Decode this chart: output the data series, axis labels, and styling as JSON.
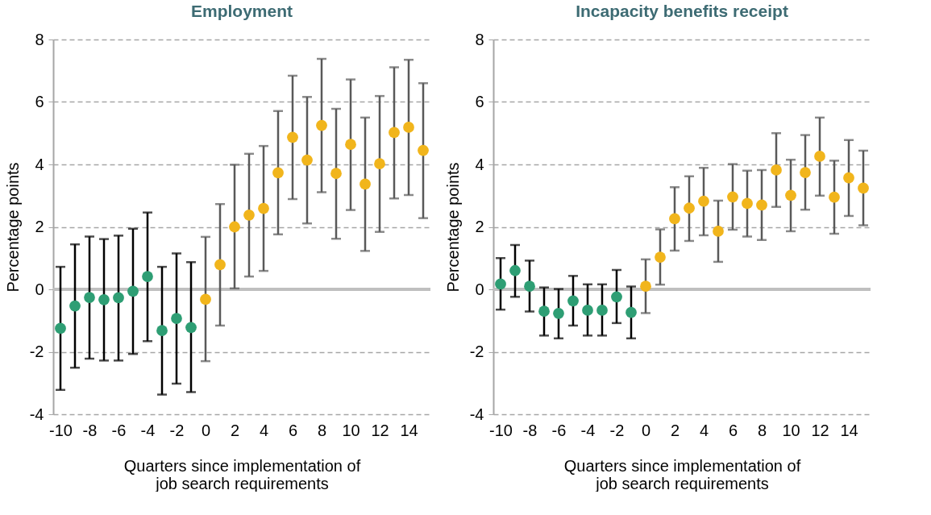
{
  "chart_data": [
    {
      "type": "scatter",
      "title": "Employment",
      "xlabel": "Quarters since implementation of\njob search requirements",
      "ylabel": "Percentage points",
      "xlim": [
        -10.5,
        15.5
      ],
      "xticks": [
        -10,
        -8,
        -6,
        -4,
        -2,
        0,
        2,
        4,
        6,
        8,
        10,
        12,
        14
      ],
      "ylim": [
        -4,
        8
      ],
      "yticks": [
        -4,
        -2,
        0,
        2,
        4,
        6,
        8
      ],
      "grid": "y",
      "marker": "circle",
      "ref_lines": [
        {
          "axis": "y",
          "value": 0,
          "color": "#bfbfbf"
        }
      ],
      "series": [
        {
          "color": "#2e9e74",
          "x": [
            -10,
            -9,
            -8,
            -7,
            -6,
            -5,
            -4,
            -3,
            -2,
            -1
          ],
          "values": [
            -1.25,
            -0.53,
            -0.26,
            -0.33,
            -0.27,
            -0.06,
            0.41,
            -1.32,
            -0.93,
            -1.22
          ],
          "errors": [
            [
              -3.22,
              0.72
            ],
            [
              -2.51,
              1.44
            ],
            [
              -2.22,
              1.69
            ],
            [
              -2.28,
              1.61
            ],
            [
              -2.28,
              1.72
            ],
            [
              -2.07,
              1.94
            ],
            [
              -1.66,
              2.46
            ],
            [
              -3.37,
              0.72
            ],
            [
              -3.02,
              1.15
            ],
            [
              -3.29,
              0.87
            ]
          ]
        },
        {
          "color": "#f1b51c",
          "x": [
            0,
            1,
            2,
            3,
            4,
            5,
            6,
            7,
            8,
            9,
            10,
            11,
            12,
            13,
            14,
            15
          ],
          "values": [
            -0.32,
            0.79,
            2.0,
            2.38,
            2.59,
            3.73,
            4.87,
            4.14,
            5.25,
            3.71,
            4.64,
            3.37,
            4.02,
            5.02,
            5.19,
            4.45
          ],
          "errors": [
            [
              -2.3,
              1.68
            ],
            [
              -1.16,
              2.73
            ],
            [
              0.03,
              3.99
            ],
            [
              0.41,
              4.34
            ],
            [
              0.59,
              4.59
            ],
            [
              1.76,
              5.71
            ],
            [
              2.89,
              6.84
            ],
            [
              2.11,
              6.16
            ],
            [
              3.11,
              7.38
            ],
            [
              1.62,
              5.78
            ],
            [
              2.54,
              6.72
            ],
            [
              1.23,
              5.5
            ],
            [
              1.84,
              6.19
            ],
            [
              2.91,
              7.11
            ],
            [
              3.02,
              7.35
            ],
            [
              2.28,
              6.6
            ]
          ]
        }
      ]
    },
    {
      "type": "scatter",
      "title": "Incapacity benefits receipt",
      "xlabel": "Quarters since implementation of\njob search requirements",
      "ylabel": "Percentage points",
      "xlim": [
        -10.5,
        15.5
      ],
      "xticks": [
        -10,
        -8,
        -6,
        -4,
        -2,
        0,
        2,
        4,
        6,
        8,
        10,
        12,
        14
      ],
      "ylim": [
        -4,
        8
      ],
      "yticks": [
        -4,
        -2,
        0,
        2,
        4,
        6,
        8
      ],
      "grid": "y",
      "marker": "circle",
      "ref_lines": [
        {
          "axis": "y",
          "value": 0,
          "color": "#bfbfbf"
        }
      ],
      "series": [
        {
          "color": "#2e9e74",
          "x": [
            -10,
            -9,
            -8,
            -7,
            -6,
            -5,
            -4,
            -3,
            -2,
            -1
          ],
          "values": [
            0.17,
            0.6,
            0.1,
            -0.7,
            -0.77,
            -0.37,
            -0.67,
            -0.67,
            -0.24,
            -0.74
          ],
          "errors": [
            [
              -0.65,
              1.0
            ],
            [
              -0.24,
              1.42
            ],
            [
              -0.71,
              0.92
            ],
            [
              -1.48,
              0.06
            ],
            [
              -1.57,
              0.01
            ],
            [
              -1.16,
              0.43
            ],
            [
              -1.48,
              0.16
            ],
            [
              -1.48,
              0.16
            ],
            [
              -1.08,
              0.62
            ],
            [
              -1.57,
              0.09
            ]
          ]
        },
        {
          "color": "#f1b51c",
          "x": [
            0,
            1,
            2,
            3,
            4,
            5,
            6,
            7,
            8,
            9,
            10,
            11,
            12,
            13,
            14,
            15
          ],
          "values": [
            0.1,
            1.03,
            2.26,
            2.6,
            2.82,
            1.86,
            2.96,
            2.75,
            2.7,
            3.82,
            3.01,
            3.74,
            4.26,
            2.95,
            3.57,
            3.24
          ],
          "errors": [
            [
              -0.76,
              0.96
            ],
            [
              0.15,
              1.92
            ],
            [
              1.24,
              3.27
            ],
            [
              1.55,
              3.62
            ],
            [
              1.73,
              3.89
            ],
            [
              0.88,
              2.84
            ],
            [
              1.91,
              4.01
            ],
            [
              1.69,
              3.8
            ],
            [
              1.58,
              3.82
            ],
            [
              2.64,
              5.0
            ],
            [
              1.86,
              4.15
            ],
            [
              2.55,
              4.94
            ],
            [
              3.0,
              5.5
            ],
            [
              1.78,
              4.12
            ],
            [
              2.35,
              4.78
            ],
            [
              2.05,
              4.44
            ]
          ]
        }
      ]
    }
  ]
}
